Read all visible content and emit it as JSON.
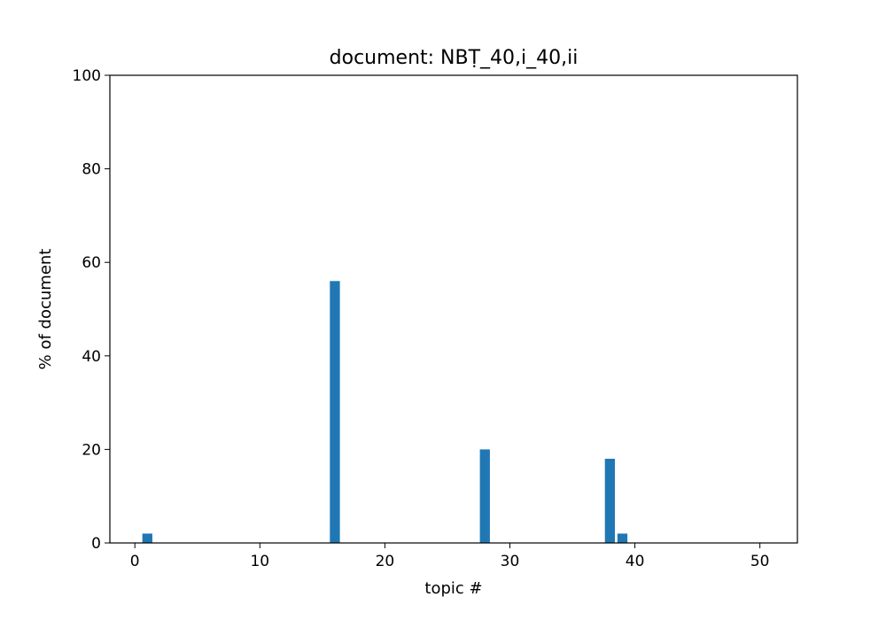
{
  "chart_data": {
    "type": "bar",
    "title": "document: NBṬ_40,i_40,ii",
    "xlabel": "topic #",
    "ylabel": "% of document",
    "xlim": [
      -2,
      53
    ],
    "ylim": [
      0,
      100
    ],
    "xticks": [
      0,
      10,
      20,
      30,
      40,
      50
    ],
    "yticks": [
      0,
      20,
      40,
      60,
      80,
      100
    ],
    "grid": false,
    "color": "#1f77b4",
    "x": [
      1,
      16,
      28,
      38,
      39
    ],
    "values": [
      2,
      56,
      20,
      18,
      2
    ]
  }
}
